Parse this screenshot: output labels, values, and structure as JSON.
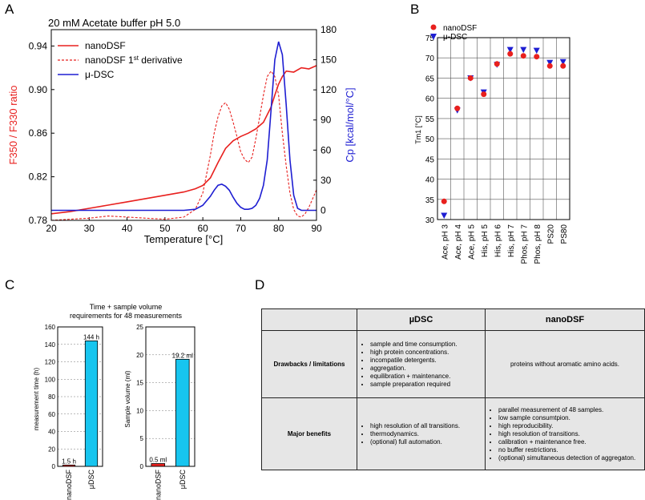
{
  "panels": {
    "a": "A",
    "b": "B",
    "c": "C",
    "d": "D"
  },
  "chart_data": [
    {
      "type": "line",
      "title": "20 mM Acetate buffer pH 5.0",
      "xlabel": "Temperature [°C]",
      "ylabel": "F350 / F330 ratio",
      "y2label": "Cp [kcal/mol/°C]",
      "xlim": [
        20,
        90
      ],
      "ylim": [
        0.78,
        0.955
      ],
      "y2lim": [
        -10,
        180
      ],
      "xticks": [
        "20",
        "30",
        "40",
        "50",
        "60",
        "70",
        "80",
        "90"
      ],
      "yticks": [
        "0.78",
        "0.82",
        "0.86",
        "0.90",
        "0.94"
      ],
      "y2ticks": [
        "0",
        "30",
        "60",
        "90",
        "120",
        "150",
        "180"
      ],
      "legend": [
        "nanoDSF",
        "nanoDSF 1",
        "st",
        " derivative",
        "μ-DSC"
      ],
      "colors": {
        "nanoDSF": "#e8201e",
        "deriv": "#e8201e",
        "dsc": "#1e1ed2"
      },
      "series": [
        {
          "name": "nanoDSF",
          "axis": "left",
          "x": [
            20,
            25,
            30,
            35,
            40,
            45,
            50,
            55,
            58,
            60,
            62,
            64,
            66,
            68,
            70,
            72,
            74,
            76,
            78,
            79,
            80,
            81,
            82,
            84,
            86,
            88,
            90
          ],
          "y": [
            0.786,
            0.788,
            0.791,
            0.794,
            0.797,
            0.8,
            0.803,
            0.806,
            0.809,
            0.812,
            0.819,
            0.833,
            0.846,
            0.853,
            0.857,
            0.86,
            0.864,
            0.87,
            0.884,
            0.895,
            0.905,
            0.912,
            0.917,
            0.916,
            0.92,
            0.919,
            0.922
          ]
        },
        {
          "name": "nanoDSF 1st derivative",
          "axis": "left",
          "x": [
            20,
            25,
            30,
            35,
            40,
            45,
            50,
            55,
            58,
            60,
            62,
            63,
            64,
            65,
            66,
            67,
            68,
            69,
            70,
            71,
            72,
            73,
            74,
            75,
            76,
            77,
            78,
            79,
            80,
            81,
            82,
            83,
            84,
            85,
            86,
            87,
            88,
            89,
            90
          ],
          "y": [
            0.78,
            0.781,
            0.782,
            0.784,
            0.783,
            0.782,
            0.781,
            0.783,
            0.79,
            0.805,
            0.84,
            0.86,
            0.875,
            0.885,
            0.888,
            0.882,
            0.87,
            0.857,
            0.843,
            0.836,
            0.833,
            0.838,
            0.855,
            0.875,
            0.895,
            0.912,
            0.917,
            0.912,
            0.895,
            0.86,
            0.83,
            0.805,
            0.79,
            0.784,
            0.783,
            0.786,
            0.792,
            0.8,
            0.808
          ]
        },
        {
          "name": "μ-DSC",
          "axis": "right",
          "x": [
            20,
            40,
            55,
            58,
            60,
            62,
            63,
            64,
            65,
            66,
            67,
            68,
            69,
            70,
            71,
            72,
            73,
            74,
            75,
            76,
            77,
            78,
            79,
            80,
            81,
            82,
            83,
            84,
            85,
            86,
            90
          ],
          "y": [
            0,
            0,
            0,
            1,
            5,
            14,
            20,
            25,
            26,
            24,
            20,
            13,
            7,
            3,
            1,
            1,
            2,
            5,
            12,
            25,
            50,
            100,
            150,
            168,
            155,
            105,
            50,
            15,
            2,
            0,
            0
          ]
        }
      ]
    },
    {
      "type": "scatter",
      "ylabel": "Tm1 [°C]",
      "ylim": [
        30,
        75
      ],
      "yticks": [
        "30",
        "35",
        "40",
        "45",
        "50",
        "55",
        "60",
        "65",
        "70",
        "75"
      ],
      "categories": [
        "Ace, pH 3",
        "Ace, pH 4",
        "Ace, pH 5",
        "His, pH 5",
        "His, pH 6",
        "His, pH 7",
        "Phos, pH 7",
        "Phos, pH 8",
        "PS20",
        "PS80"
      ],
      "series": [
        {
          "name": "nanoDSF",
          "marker": "circle",
          "color": "#e8201e",
          "values": [
            34.5,
            57.5,
            65.0,
            61.0,
            68.5,
            71.0,
            70.5,
            70.3,
            68.0,
            68.0
          ]
        },
        {
          "name": "μ-DSC",
          "marker": "triangle-down",
          "color": "#1e1ed2",
          "values": [
            31.0,
            57.0,
            65.0,
            61.5,
            68.3,
            72.0,
            72.0,
            71.8,
            68.8,
            69.0
          ]
        }
      ],
      "grid": true,
      "legend_position": "top-left"
    },
    {
      "type": "bar",
      "title": [
        "Time + sample volume",
        "requirements for 48 measurements"
      ],
      "ylabel": "measurement time (h)",
      "categories": [
        "nanoDSF",
        "μDSC"
      ],
      "values": [
        1.5,
        144
      ],
      "labels": [
        "1.5 h",
        "144 h"
      ],
      "colors": [
        "#e8201e",
        "#17c5ef"
      ],
      "ylim": [
        0,
        160
      ],
      "yticks": [
        "0",
        "20",
        "40",
        "60",
        "80",
        "100",
        "120",
        "140",
        "160"
      ],
      "grid": true
    },
    {
      "type": "bar",
      "ylabel": "Sample volume (ml)",
      "categories": [
        "nanoDSF",
        "μDSC"
      ],
      "values": [
        0.5,
        19.2
      ],
      "labels": [
        "0.5 ml",
        "19.2 ml"
      ],
      "colors": [
        "#e8201e",
        "#17c5ef"
      ],
      "ylim": [
        0,
        25
      ],
      "yticks": [
        "0",
        "5",
        "10",
        "15",
        "20",
        "25"
      ],
      "grid": true
    }
  ],
  "table": {
    "headers": [
      "",
      "µDSC",
      "nanoDSF"
    ],
    "rows": [
      {
        "label": "Drawbacks / limitations",
        "dsc": [
          "sample and time consumption.",
          "high protein concentrations.",
          "incompatile detergents.",
          "aggregation.",
          "equilibration + maintenance.",
          "sample preparation required"
        ],
        "nano": "proteins without aromatic amino acids."
      },
      {
        "label": "Major benefits",
        "dsc": [
          "high resolution of all transitions.",
          "thermodynamics.",
          "(optional) full automation."
        ],
        "nano": [
          "parallel measurement of 48 samples.",
          "low sample consumtpion.",
          "high reproducibility.",
          "high resolution of transitions.",
          "calibration + maintenance free.",
          "no buffer restrictions.",
          "(optional) simultaneous detection of aggregaton."
        ]
      }
    ]
  }
}
